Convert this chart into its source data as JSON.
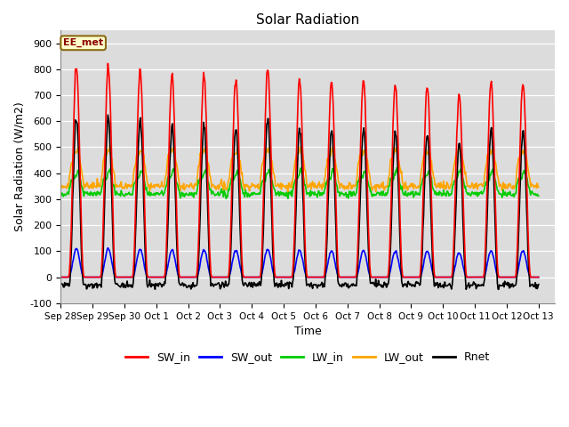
{
  "title": "Solar Radiation",
  "xlabel": "Time",
  "ylabel": "Solar Radiation (W/m2)",
  "annotation": "EE_met",
  "ylim": [
    -100,
    950
  ],
  "xlim_start": 0,
  "xlim_end": 15.5,
  "bg_color": "#dcdcdc",
  "fig_bg": "#ffffff",
  "series": {
    "SW_in": {
      "color": "#ff0000",
      "lw": 1.2
    },
    "SW_out": {
      "color": "#0000ff",
      "lw": 1.2
    },
    "LW_in": {
      "color": "#00cc00",
      "lw": 1.2
    },
    "LW_out": {
      "color": "#ffa500",
      "lw": 1.2
    },
    "Rnet": {
      "color": "#000000",
      "lw": 1.2
    }
  },
  "xtick_labels": [
    "Sep 28",
    "Sep 29",
    "Sep 30",
    "Oct 1",
    "Oct 2",
    "Oct 3",
    "Oct 4",
    "Oct 5",
    "Oct 6",
    "Oct 7",
    "Oct 8",
    "Oct 9",
    "Oct 10",
    "Oct 11",
    "Oct 12",
    "Oct 13"
  ],
  "xtick_positions": [
    0,
    1,
    2,
    3,
    4,
    5,
    6,
    7,
    8,
    9,
    10,
    11,
    12,
    13,
    14,
    15
  ],
  "ytick_values": [
    -100,
    0,
    100,
    200,
    300,
    400,
    500,
    600,
    700,
    800,
    900
  ]
}
